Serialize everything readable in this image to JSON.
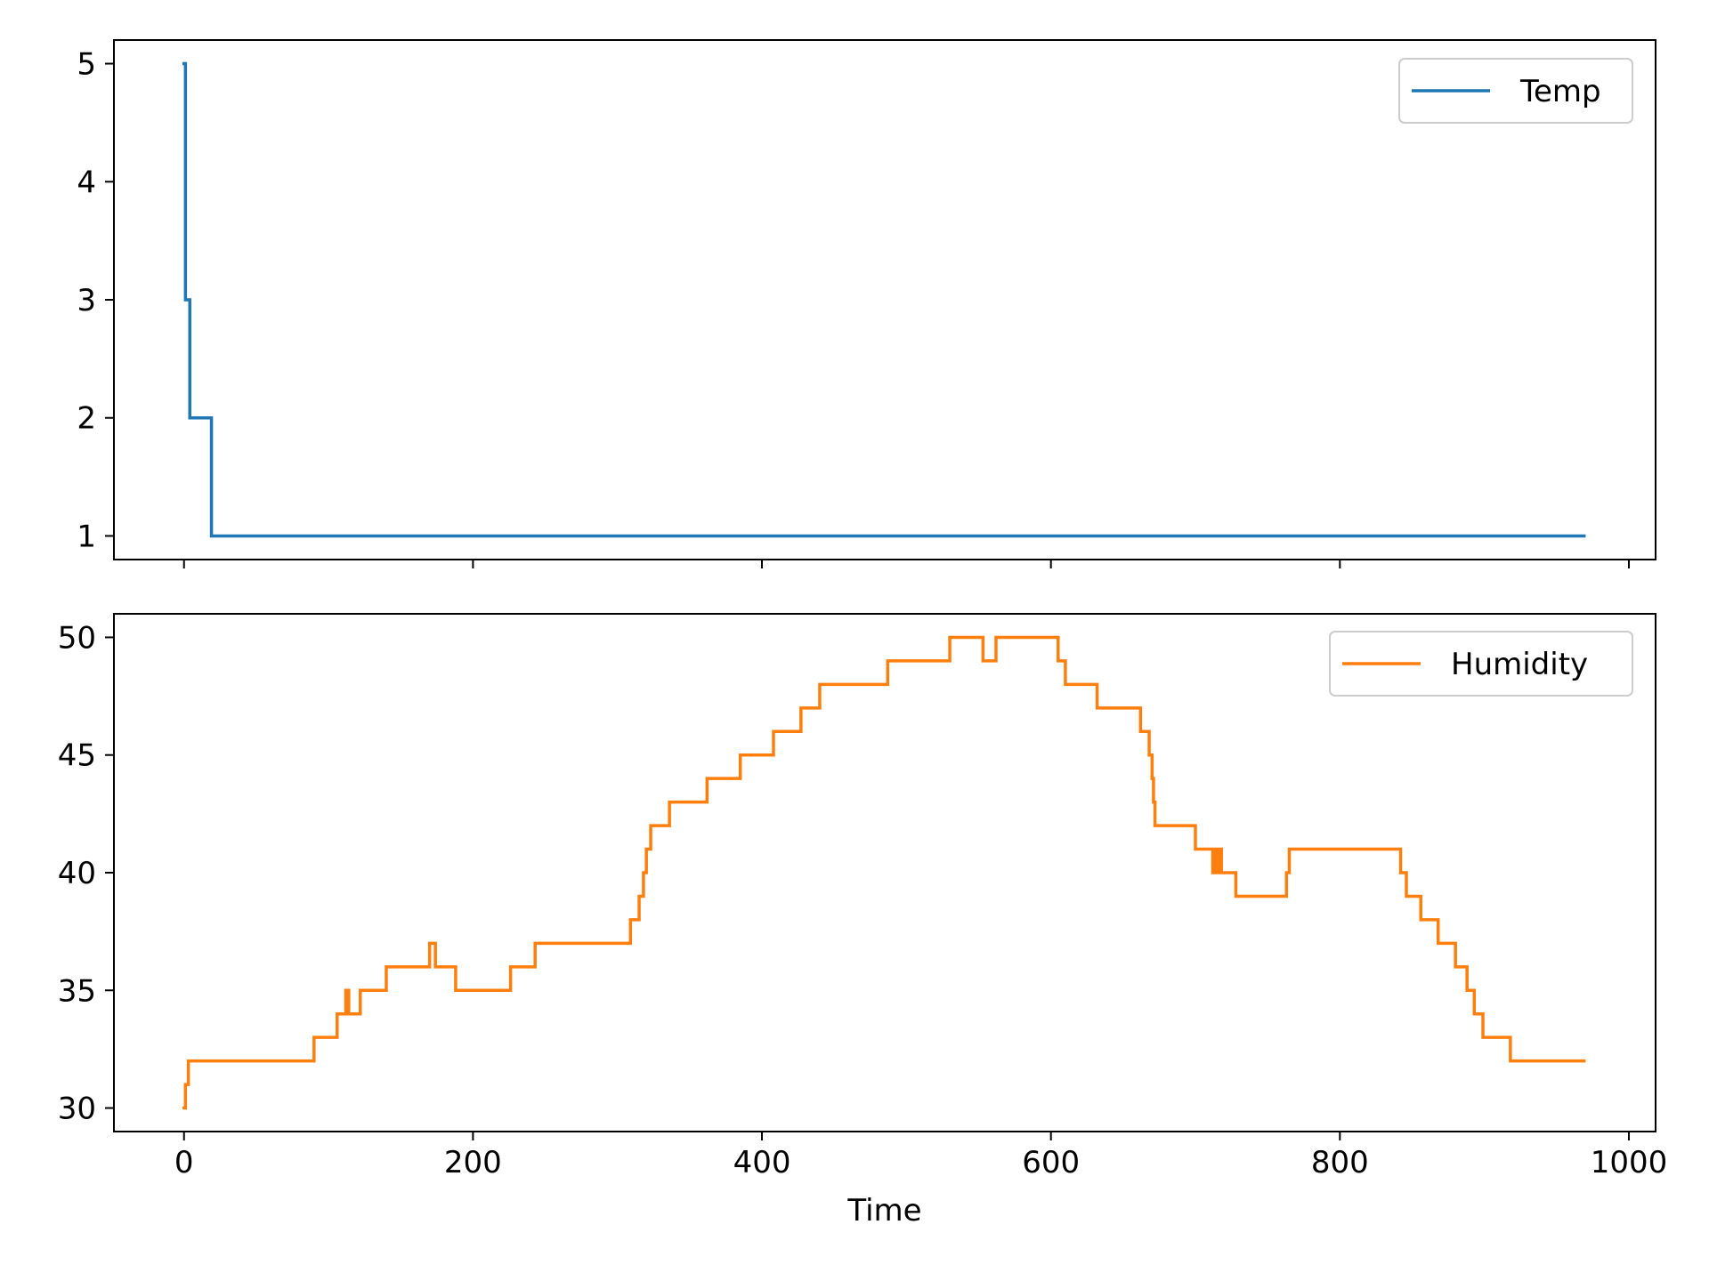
{
  "chart_data": [
    {
      "type": "line",
      "xlabel": "",
      "ylabel": "",
      "xlim": [
        -48.5,
        1018.5
      ],
      "ylim": [
        0.8,
        5.2
      ],
      "xticks": [
        0,
        200,
        400,
        600,
        800,
        1000
      ],
      "yticks": [
        1,
        2,
        3,
        4,
        5
      ],
      "show_x_tick_labels": false,
      "grid": false,
      "legend": "top-right",
      "series": [
        {
          "name": "Temp",
          "color": "#1f77b4",
          "step": true,
          "x": [
            0,
            1,
            3,
            4,
            18,
            19,
            969
          ],
          "y": [
            5,
            3,
            3,
            2,
            2,
            1,
            1
          ]
        }
      ]
    },
    {
      "type": "line",
      "xlabel": "Time",
      "ylabel": "",
      "xlim": [
        -48.5,
        1018.5
      ],
      "ylim": [
        29,
        51
      ],
      "xticks": [
        0,
        200,
        400,
        600,
        800,
        1000
      ],
      "yticks": [
        30,
        35,
        40,
        45,
        50
      ],
      "show_x_tick_labels": true,
      "grid": false,
      "legend": "top-right",
      "series": [
        {
          "name": "Humidity",
          "color": "#ff7f0e",
          "step": true,
          "x": [
            0,
            1,
            3,
            90,
            106,
            112,
            114,
            116,
            122,
            140,
            170,
            174,
            188,
            226,
            243,
            309,
            315,
            318,
            320,
            323,
            336,
            362,
            385,
            408,
            427,
            440,
            487,
            530,
            553,
            562,
            605,
            610,
            632,
            662,
            668,
            670,
            671,
            672,
            674,
            700,
            712,
            713,
            714,
            715,
            716,
            717,
            718,
            722,
            728,
            763,
            765,
            842,
            846,
            856,
            868,
            880,
            888,
            893,
            899,
            909,
            918,
            969
          ],
          "y": [
            30,
            31,
            32,
            33,
            34,
            35,
            34,
            34,
            35,
            36,
            37,
            36,
            35,
            36,
            37,
            38,
            39,
            40,
            41,
            42,
            43,
            44,
            45,
            46,
            47,
            48,
            49,
            50,
            49,
            50,
            49,
            48,
            47,
            46,
            45,
            44,
            43,
            42,
            42,
            41,
            40,
            41,
            40,
            41,
            40,
            41,
            40,
            40,
            39,
            40,
            41,
            40,
            39,
            38,
            37,
            36,
            35,
            34,
            33,
            33,
            32,
            32
          ]
        }
      ]
    }
  ]
}
